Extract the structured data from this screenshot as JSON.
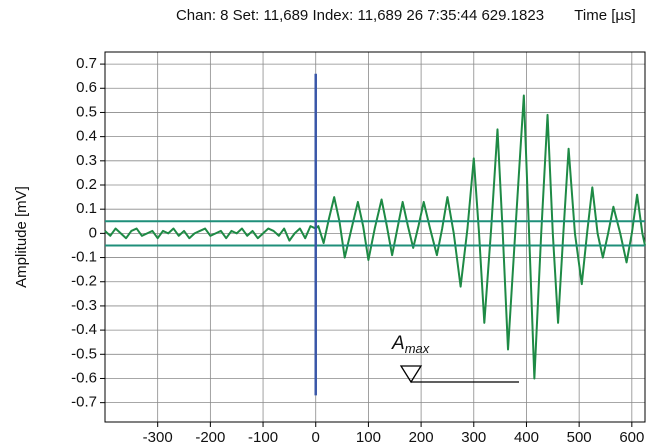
{
  "chart_data": {
    "type": "line",
    "title": "Chan: 8  Set: 11,689  Index: 11,689   26   7:35:44 629.1823",
    "xlabel": "Time [µs]",
    "ylabel": "Amplitude [mV]",
    "xlim": [
      -400,
      625
    ],
    "ylim": [
      -0.78,
      0.75
    ],
    "xticks": [
      -300,
      -200,
      -100,
      0,
      100,
      200,
      300,
      400,
      500,
      600
    ],
    "yticks": [
      -0.7,
      -0.6,
      -0.5,
      -0.4,
      -0.3,
      -0.2,
      -0.1,
      0,
      0.1,
      0.2,
      0.3,
      0.4,
      0.5,
      0.6,
      0.7
    ],
    "grid": true,
    "threshold": [
      0.05,
      -0.05
    ],
    "threshold_color": "#1f8f7a",
    "trigger_line": {
      "x": 0,
      "ymin": -0.67,
      "ymax": 0.66,
      "color": "#3a57a8"
    },
    "annotation": {
      "text": "A",
      "subscript": "max"
    },
    "series": [
      {
        "color": "#1e8a45",
        "x": [
          -400,
          -390,
          -380,
          -370,
          -360,
          -350,
          -340,
          -330,
          -320,
          -310,
          -300,
          -290,
          -280,
          -270,
          -260,
          -250,
          -240,
          -230,
          -220,
          -210,
          -200,
          -190,
          -180,
          -170,
          -160,
          -150,
          -140,
          -130,
          -120,
          -110,
          -100,
          -90,
          -80,
          -70,
          -60,
          -50,
          -40,
          -30,
          -20,
          -10,
          0,
          5,
          15,
          25,
          35,
          45,
          55,
          68,
          80,
          90,
          100,
          112,
          125,
          135,
          145,
          155,
          165,
          175,
          185,
          195,
          205,
          217,
          230,
          240,
          250,
          262,
          275,
          288,
          300,
          310,
          320,
          333,
          345,
          355,
          365,
          380,
          395,
          405,
          415,
          428,
          440,
          450,
          460,
          470,
          480,
          492,
          505,
          515,
          525,
          535,
          545,
          555,
          565,
          578,
          590,
          600,
          610,
          620,
          625
        ],
        "values": [
          0.01,
          -0.01,
          0.02,
          0.0,
          -0.02,
          0.01,
          0.02,
          -0.01,
          0.0,
          0.01,
          -0.02,
          0.01,
          0.0,
          0.02,
          -0.01,
          0.01,
          -0.02,
          0.0,
          0.01,
          0.02,
          -0.01,
          0.0,
          0.01,
          -0.02,
          0.01,
          0.0,
          0.02,
          -0.01,
          0.01,
          -0.02,
          0.0,
          0.02,
          0.01,
          -0.01,
          0.02,
          -0.03,
          0.0,
          0.02,
          -0.02,
          0.03,
          0.02,
          0.03,
          -0.04,
          0.06,
          0.15,
          0.05,
          -0.1,
          0.02,
          0.13,
          0.03,
          -0.11,
          0.02,
          0.14,
          0.03,
          -0.09,
          0.02,
          0.13,
          0.03,
          -0.06,
          0.03,
          0.13,
          0.02,
          -0.09,
          0.02,
          0.15,
          0.0,
          -0.22,
          0.02,
          0.31,
          0.0,
          -0.37,
          0.02,
          0.43,
          0.0,
          -0.48,
          0.05,
          0.57,
          0.0,
          -0.6,
          0.0,
          0.49,
          0.0,
          -0.37,
          0.0,
          0.35,
          0.0,
          -0.21,
          0.0,
          0.19,
          0.0,
          -0.1,
          0.0,
          0.11,
          0.0,
          -0.12,
          0.0,
          0.16,
          0.0,
          -0.05
        ]
      }
    ]
  }
}
